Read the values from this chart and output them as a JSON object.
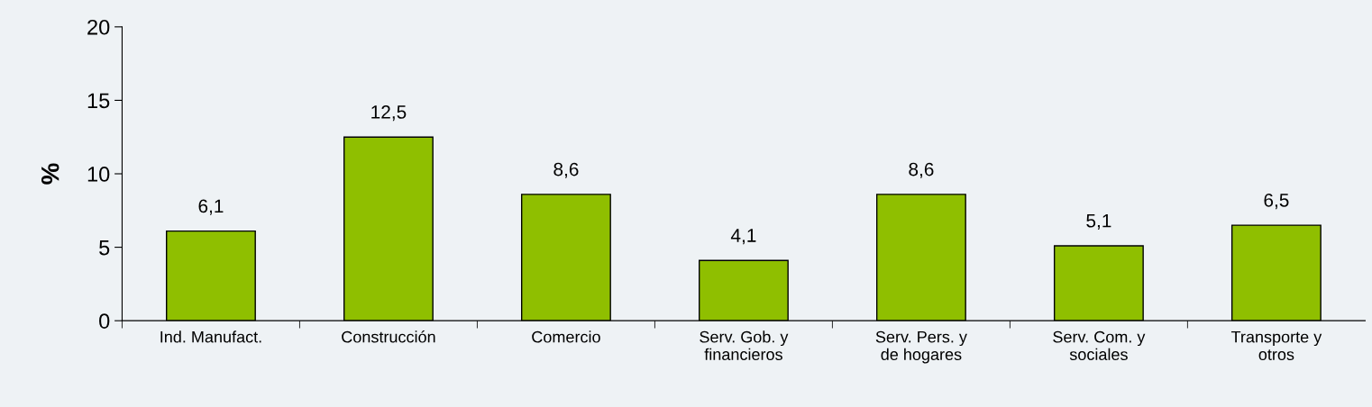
{
  "chart_data": {
    "type": "bar",
    "ylabel": "%",
    "categories": [
      "Ind. Manufact.",
      "Construcción",
      "Comercio",
      "Serv. Gob. y\nfinancieros",
      "Serv. Pers. y\nde hogares",
      "Serv. Com. y\nsociales",
      "Transporte y\notros"
    ],
    "values": [
      6.1,
      12.5,
      8.6,
      4.1,
      8.6,
      5.1,
      6.5
    ],
    "value_labels": [
      "6,1",
      "12,5",
      "8,6",
      "4,1",
      "8,6",
      "5,1",
      "6,5"
    ],
    "color": "#8fbf00",
    "ylim": [
      0,
      20
    ],
    "yticks": [
      0,
      5,
      10,
      15,
      20
    ],
    "grid": false,
    "legend": false
  }
}
